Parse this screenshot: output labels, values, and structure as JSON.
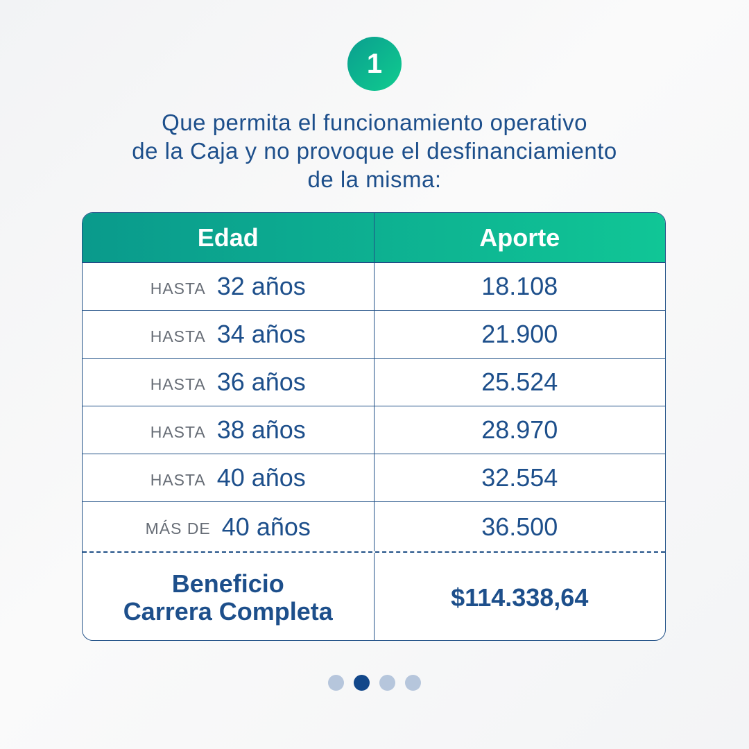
{
  "step_number": "1",
  "intro": {
    "line1": "Que permita el funcionamiento operativo",
    "line2": "de la Caja y no provoque el desfinanciamiento",
    "line3": "de la misma:"
  },
  "table": {
    "headers": {
      "age": "Edad",
      "contribution": "Aporte"
    },
    "rows": [
      {
        "prefix": "HASTA",
        "age": "32 años",
        "value": "18.108"
      },
      {
        "prefix": "HASTA",
        "age": "34 años",
        "value": "21.900"
      },
      {
        "prefix": "HASTA",
        "age": "36 años",
        "value": "25.524"
      },
      {
        "prefix": "HASTA",
        "age": "38 años",
        "value": "28.970"
      },
      {
        "prefix": "HASTA",
        "age": "40 años",
        "value": "32.554"
      },
      {
        "prefix": "MÁS DE",
        "age": "40 años",
        "value": "36.500"
      }
    ],
    "total": {
      "label_line1": "Beneficio",
      "label_line2": "Carrera Completa",
      "value": "$114.338,64"
    }
  },
  "pagination": {
    "count": 4,
    "active_index": 1
  },
  "colors": {
    "accent_start": "#0a9a8c",
    "accent_end": "#10c696",
    "text_blue": "#1d4f8b",
    "border_blue": "#1f4f86",
    "dot_active": "#12478a",
    "dot_inactive": "#b6c6dc"
  }
}
